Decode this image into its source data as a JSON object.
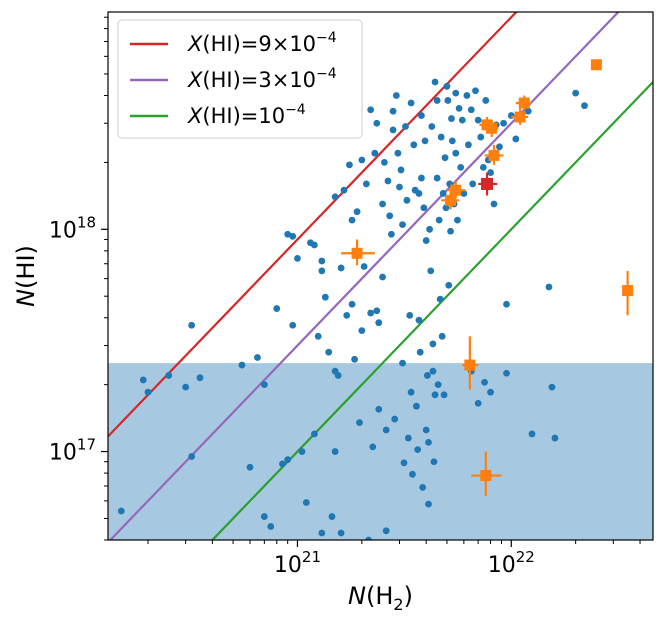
{
  "chart_data": {
    "type": "scatter",
    "xscale": "log",
    "yscale": "log",
    "xlim": [
      1.3e+20,
      4.6e+22
    ],
    "ylim": [
      4e+16,
      9.5e+18
    ],
    "xticks": [
      {
        "value": 1e+21,
        "base": "10",
        "exp": "21"
      },
      {
        "value": 1e+22,
        "base": "10",
        "exp": "22"
      }
    ],
    "yticks": [
      {
        "value": 1e+17,
        "base": "10",
        "exp": "17"
      },
      {
        "value": 1e+18,
        "base": "10",
        "exp": "18"
      }
    ],
    "xlabel": {
      "main": "N",
      "pre": "(H",
      "sub": "2",
      "post": ")"
    },
    "ylabel": {
      "main": "N",
      "rest": "(HI)"
    },
    "legend_position": "top-left",
    "grid": false,
    "shaded_region": {
      "y_max": 2.5e+17,
      "color": "#a6c8e0"
    },
    "lines": [
      {
        "label_main": "X",
        "label_rest": "(HI)=9×10",
        "label_sup": "−4",
        "ratio": 0.0009,
        "color": "#d62728"
      },
      {
        "label_main": "X",
        "label_rest": "(HI)=3×10",
        "label_sup": "−4",
        "ratio": 0.0003,
        "color": "#9467bd"
      },
      {
        "label_main": "X",
        "label_rest": "(HI)=10",
        "label_sup": "−4",
        "ratio": 0.0001,
        "color": "#2ca02c"
      }
    ],
    "scatter_color": "#1f77b4",
    "scatter_points": [
      [
        1.5e+20,
        5.4e+16
      ],
      [
        1.9e+20,
        2.1e+17
      ],
      [
        2e+20,
        1.85e+17
      ],
      [
        2.5e+20,
        2.2e+17
      ],
      [
        3e+20,
        1.95e+17
      ],
      [
        3.2e+20,
        3.7e+17
      ],
      [
        3.5e+20,
        2.15e+17
      ],
      [
        3.2e+20,
        9.5e+16
      ],
      [
        5.5e+20,
        2.45e+17
      ],
      [
        6e+20,
        8.5e+16
      ],
      [
        6.5e+20,
        2.65e+17
      ],
      [
        7e+20,
        2e+17
      ],
      [
        7e+20,
        5.1e+16
      ],
      [
        7.5e+20,
        4.6e+16
      ],
      [
        8e+20,
        4.4e+17
      ],
      [
        8.5e+20,
        8.8e+16
      ],
      [
        9e+20,
        9.5e+17
      ],
      [
        9e+20,
        9.2e+16
      ],
      [
        9.5e+20,
        9.3e+17
      ],
      [
        9.5e+20,
        3.7e+17
      ],
      [
        1e+21,
        7.4e+17
      ],
      [
        1.05e+21,
        1e+17
      ],
      [
        1.1e+21,
        5.9e+16
      ],
      [
        1.15e+21,
        8.7e+17
      ],
      [
        1.2e+21,
        8.5e+17
      ],
      [
        1.2e+21,
        1.2e+17
      ],
      [
        1.25e+21,
        3.3e+17
      ],
      [
        1.3e+21,
        7.2e+17
      ],
      [
        1.3e+21,
        6.5e+17
      ],
      [
        1.3e+21,
        4.3e+16
      ],
      [
        1.35e+21,
        4.95e+17
      ],
      [
        1.4e+21,
        2.8e+17
      ],
      [
        1.45e+21,
        5.1e+16
      ],
      [
        1.5e+21,
        1.4e+18
      ],
      [
        1.5e+21,
        2.3e+17
      ],
      [
        1.5e+21,
        1e+17
      ],
      [
        1.55e+21,
        2.2e+17
      ],
      [
        1.6e+21,
        6.7e+17
      ],
      [
        1.65e+21,
        1.5e+18
      ],
      [
        1.6e+21,
        4.3e+16
      ],
      [
        1.7e+21,
        4.1e+17
      ],
      [
        1.75e+21,
        1.95e+18
      ],
      [
        1.8e+21,
        1.1e+18
      ],
      [
        1.8e+21,
        4.6e+17
      ],
      [
        1.85e+21,
        2.6e+17
      ],
      [
        1.9e+21,
        1.2e+18
      ],
      [
        1.95e+21,
        1.35e+17
      ],
      [
        2e+21,
        2.05e+18
      ],
      [
        2e+21,
        3.5e+17
      ],
      [
        2.05e+21,
        6.8e+17
      ],
      [
        2.1e+21,
        1.6e+18
      ],
      [
        2.15e+21,
        4e+16
      ],
      [
        2.2e+21,
        3.45e+18
      ],
      [
        2.2e+21,
        4.2e+17
      ],
      [
        2.25e+21,
        1.05e+17
      ],
      [
        2.3e+21,
        2.2e+18
      ],
      [
        2.35e+21,
        3e+18
      ],
      [
        2.35e+21,
        4.3e+17
      ],
      [
        2.4e+21,
        3.8e+17
      ],
      [
        2.4e+21,
        1.55e+17
      ],
      [
        2.5e+21,
        1.3e+18
      ],
      [
        2.5e+21,
        6.1e+17
      ],
      [
        2.55e+21,
        2e+18
      ],
      [
        2.6e+21,
        1.25e+17
      ],
      [
        2.6e+21,
        4.4e+16
      ],
      [
        2.65e+21,
        1.65e+18
      ],
      [
        2.7e+21,
        1.15e+18
      ],
      [
        2.75e+21,
        9.5e+17
      ],
      [
        2.8e+21,
        3.4e+18
      ],
      [
        2.8e+21,
        2.8e+18
      ],
      [
        2.85e+21,
        1.4e+17
      ],
      [
        2.9e+21,
        4e+18
      ],
      [
        2.95e+21,
        2.2e+18
      ],
      [
        3e+21,
        1.55e+18
      ],
      [
        3.05e+21,
        1.85e+18
      ],
      [
        3.1e+21,
        1.05e+18
      ],
      [
        3.1e+21,
        2.5e+17
      ],
      [
        3.15e+21,
        8.9e+16
      ],
      [
        3.2e+21,
        2.9e+18
      ],
      [
        3.25e+21,
        1.35e+18
      ],
      [
        3.3e+21,
        1.15e+17
      ],
      [
        3.35e+21,
        4.1e+17
      ],
      [
        3.4e+21,
        3.7e+18
      ],
      [
        3.4e+21,
        1.85e+17
      ],
      [
        3.45e+21,
        7.9e+16
      ],
      [
        3.5e+21,
        2.4e+18
      ],
      [
        3.55e+21,
        1.5e+18
      ],
      [
        3.6e+21,
        1.6e+17
      ],
      [
        3.65e+21,
        1.02e+17
      ],
      [
        3.7e+21,
        1.45e+18
      ],
      [
        3.7e+21,
        3.9e+17
      ],
      [
        3.75e+21,
        2.8e+17
      ],
      [
        3.8e+21,
        3.25e+18
      ],
      [
        3.8e+21,
        1.7e+18
      ],
      [
        3.85e+21,
        6.9e+16
      ],
      [
        3.9e+21,
        1.25e+18
      ],
      [
        3.95e+21,
        2.5e+18
      ],
      [
        4e+21,
        8.9e+17
      ],
      [
        4e+21,
        1.25e+17
      ],
      [
        4.05e+21,
        2.2e+17
      ],
      [
        4.1e+21,
        1.1e+17
      ],
      [
        4.1e+21,
        5.8e+16
      ],
      [
        4.15e+21,
        1e+18
      ],
      [
        4.2e+21,
        6.5e+17
      ],
      [
        4.25e+21,
        2.9e+18
      ],
      [
        4.3e+21,
        3.05e+17
      ],
      [
        4.35e+21,
        9e+16
      ],
      [
        4.4e+21,
        4.6e+18
      ],
      [
        4.4e+21,
        1.8e+17
      ],
      [
        4.5e+21,
        1.7e+18
      ],
      [
        4.5e+21,
        3.8e+18
      ],
      [
        4.55e+21,
        2e+17
      ],
      [
        4.6e+21,
        1.1e+18
      ],
      [
        4.65e+21,
        4.85e+17
      ],
      [
        4.7e+21,
        2.6e+18
      ],
      [
        4.75e+21,
        3.3e+17
      ],
      [
        4.8e+21,
        1.45e+18
      ],
      [
        4.85e+21,
        1.8e+17
      ],
      [
        4.9e+21,
        2.1e+18
      ],
      [
        4.95e+21,
        1.25e+18
      ],
      [
        5e+21,
        4.4e+18
      ],
      [
        5.05e+21,
        3.8e+18
      ],
      [
        5.1e+21,
        5.6e+17
      ],
      [
        5.15e+21,
        1.6e+18
      ],
      [
        5.2e+21,
        9.8e+17
      ],
      [
        5.25e+21,
        3.15e+18
      ],
      [
        5.3e+21,
        2.5e+18
      ],
      [
        5.4e+21,
        1.3e+18
      ],
      [
        5.5e+21,
        4.1e+18
      ],
      [
        5.5e+21,
        2.2e+18
      ],
      [
        5.6e+21,
        1.1e+18
      ],
      [
        5.7e+21,
        3.5e+18
      ],
      [
        5.8e+21,
        1.9e+18
      ],
      [
        5.9e+21,
        3.1e+18
      ],
      [
        6e+21,
        1.45e+18
      ],
      [
        6.2e+21,
        4e+18
      ],
      [
        6.3e+21,
        2.4e+18
      ],
      [
        6.5e+21,
        3.45e+18
      ],
      [
        6.6e+21,
        1.6e+18
      ],
      [
        6.8e+21,
        4.2e+18
      ],
      [
        7e+21,
        3.1e+18
      ],
      [
        7.2e+21,
        2.6e+18
      ],
      [
        7.4e+21,
        1.9e+18
      ],
      [
        7.6e+21,
        3.8e+18
      ],
      [
        7.8e+21,
        2.05e+18
      ],
      [
        8e+21,
        1.8e+18
      ],
      [
        8.3e+21,
        1.3e+18
      ],
      [
        8.5e+21,
        2.95e+18
      ],
      [
        8.8e+21,
        2.35e+18
      ],
      [
        9.2e+21,
        3e+18
      ],
      [
        9.5e+21,
        4.6e+17
      ],
      [
        1e+22,
        3.25e+18
      ],
      [
        1.05e+22,
        2.55e+18
      ],
      [
        1.2e+22,
        3.4e+18
      ],
      [
        1.25e+22,
        1.2e+17
      ],
      [
        1.5e+22,
        5.5e+17
      ],
      [
        1.55e+22,
        1.95e+17
      ],
      [
        1.6e+22,
        1.15e+17
      ],
      [
        2e+22,
        4.1e+18
      ],
      [
        2.2e+22,
        3.6e+18
      ],
      [
        6.5e+21,
        2.3e+17
      ],
      [
        7e+21,
        1.65e+17
      ],
      [
        7.5e+21,
        2.05e+17
      ],
      [
        8e+21,
        1.85e+17
      ],
      [
        9.5e+21,
        2.25e+17
      ],
      [
        4.3e+21,
        2.3e+17
      ]
    ],
    "orange_color": "#ff7f0e",
    "orange_points": [
      {
        "x": 1.9e+21,
        "y": 7.8e+17,
        "xerr": [
          1.6e+21,
          2.3e+21
        ],
        "yerr": [
          6.9e+17,
          9e+17
        ]
      },
      {
        "x": 5.2e+21,
        "y": 1.35e+18,
        "xerr": [
          4.7e+21,
          5.7e+21
        ],
        "yerr": [
          1.23e+18,
          1.48e+18
        ]
      },
      {
        "x": 5.5e+21,
        "y": 1.5e+18,
        "xerr": [
          5e+21,
          6.1e+21
        ],
        "yerr": [
          1.38e+18,
          1.65e+18
        ]
      },
      {
        "x": 7.7e+21,
        "y": 2.95e+18,
        "xerr": [
          7.1e+21,
          8.4e+21
        ],
        "yerr": [
          2.7e+18,
          3.2e+18
        ]
      },
      {
        "x": 8.1e+21,
        "y": 2.85e+18,
        "xerr": [
          7.5e+21,
          8.7e+21
        ],
        "yerr": [
          2.6e+18,
          3.1e+18
        ]
      },
      {
        "x": 8.3e+21,
        "y": 2.15e+18,
        "xerr": [
          7.5e+21,
          9.2e+21
        ],
        "yerr": [
          1.95e+18,
          2.4e+18
        ]
      },
      {
        "x": 1.1e+22,
        "y": 3.2e+18,
        "xerr": [
          1e+22,
          1.2e+22
        ],
        "yerr": [
          2.95e+18,
          3.5e+18
        ]
      },
      {
        "x": 1.15e+22,
        "y": 3.7e+18,
        "xerr": [
          1.05e+22,
          1.25e+22
        ],
        "yerr": [
          3.45e+18,
          4e+18
        ]
      },
      {
        "x": 2.5e+22,
        "y": 5.5e+18
      },
      {
        "x": 6.4e+21,
        "y": 2.45e+17,
        "xerr": [
          5.9e+21,
          7e+21
        ],
        "yerr": [
          1.9e+17,
          3.3e+17
        ]
      },
      {
        "x": 7.6e+21,
        "y": 7.8e+16,
        "xerr": [
          6.5e+21,
          9e+21
        ],
        "yerr": [
          6.3e+16,
          1e+17
        ]
      },
      {
        "x": 3.5e+22,
        "y": 5.3e+17,
        "xerr": [
          3.3e+22,
          3.7e+22
        ],
        "yerr": [
          4.1e+17,
          6.5e+17
        ]
      }
    ],
    "red_color": "#d62728",
    "red_points": [
      {
        "x": 7.7e+21,
        "y": 1.6e+18,
        "xerr": [
          7e+21,
          8.6e+21
        ],
        "yerr": [
          1.42e+18,
          1.8e+18
        ]
      }
    ]
  }
}
